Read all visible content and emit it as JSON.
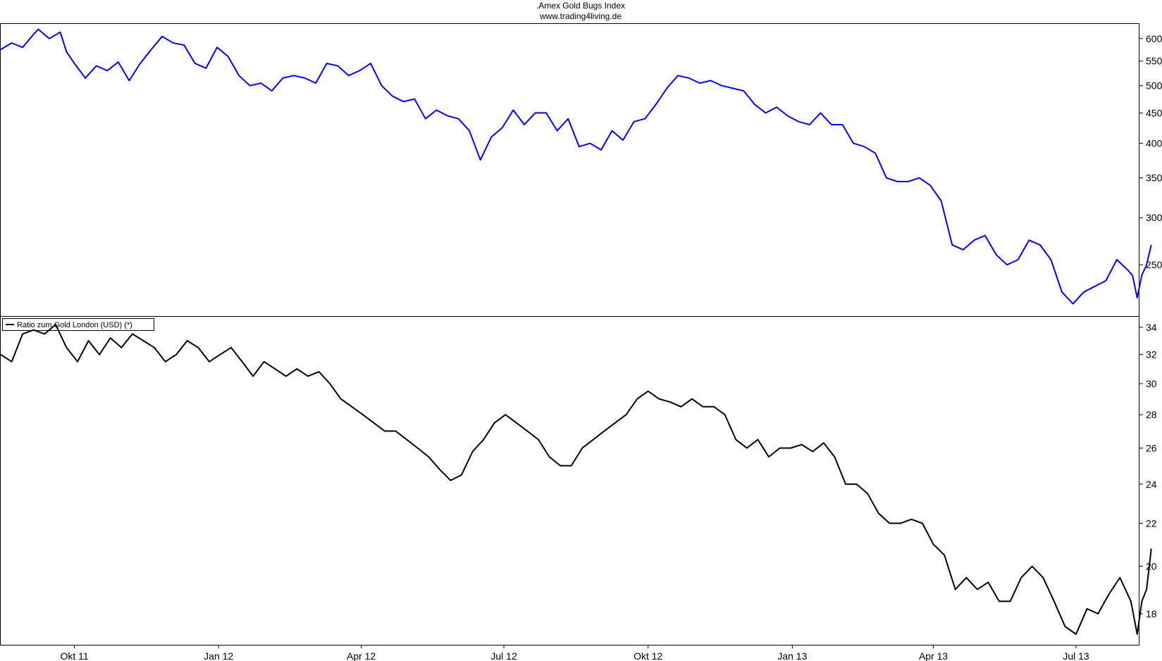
{
  "chart_data": {
    "type": "line",
    "title": ".Amex Gold Bugs Index",
    "subtitle": "www.trading4living.de",
    "x_range": [
      "2011-08-15",
      "2013-08-10"
    ],
    "x_tick_labels": [
      {
        "label": "Okt 11",
        "date": "2011-10-01"
      },
      {
        "label": "Jan 12",
        "date": "2012-01-01"
      },
      {
        "label": "Apr 12",
        "date": "2012-04-01"
      },
      {
        "label": "Jul 12",
        "date": "2012-07-01"
      },
      {
        "label": "Okt 12",
        "date": "2012-10-01"
      },
      {
        "label": "Jan 13",
        "date": "2013-01-01"
      },
      {
        "label": "Apr 13",
        "date": "2013-04-01"
      },
      {
        "label": "Jul 13",
        "date": "2013-07-01"
      }
    ],
    "panels": [
      {
        "y_scale": "log",
        "y_range": [
          205,
          635
        ],
        "y_ticks": [
          250,
          300,
          350,
          400,
          450,
          500,
          550,
          600
        ],
        "series": [
          {
            "color": "#0000ff",
            "points": [
              [
                "2011-08-15",
                575
              ],
              [
                "2011-08-22",
                590
              ],
              [
                "2011-08-29",
                580
              ],
              [
                "2011-09-05",
                610
              ],
              [
                "2011-09-08",
                622
              ],
              [
                "2011-09-15",
                600
              ],
              [
                "2011-09-22",
                615
              ],
              [
                "2011-09-26",
                570
              ],
              [
                "2011-10-01",
                545
              ],
              [
                "2011-10-08",
                515
              ],
              [
                "2011-10-15",
                540
              ],
              [
                "2011-10-22",
                530
              ],
              [
                "2011-10-29",
                548
              ],
              [
                "2011-11-05",
                510
              ],
              [
                "2011-11-12",
                545
              ],
              [
                "2011-11-19",
                575
              ],
              [
                "2011-11-26",
                605
              ],
              [
                "2011-12-03",
                590
              ],
              [
                "2011-12-10",
                585
              ],
              [
                "2011-12-17",
                545
              ],
              [
                "2011-12-24",
                535
              ],
              [
                "2011-12-31",
                580
              ],
              [
                "2012-01-07",
                560
              ],
              [
                "2012-01-14",
                520
              ],
              [
                "2012-01-21",
                500
              ],
              [
                "2012-01-28",
                505
              ],
              [
                "2012-02-04",
                490
              ],
              [
                "2012-02-11",
                515
              ],
              [
                "2012-02-18",
                520
              ],
              [
                "2012-02-25",
                515
              ],
              [
                "2012-03-03",
                505
              ],
              [
                "2012-03-10",
                545
              ],
              [
                "2012-03-17",
                540
              ],
              [
                "2012-03-24",
                520
              ],
              [
                "2012-03-31",
                530
              ],
              [
                "2012-04-07",
                545
              ],
              [
                "2012-04-14",
                500
              ],
              [
                "2012-04-21",
                480
              ],
              [
                "2012-04-28",
                470
              ],
              [
                "2012-05-05",
                475
              ],
              [
                "2012-05-12",
                440
              ],
              [
                "2012-05-19",
                455
              ],
              [
                "2012-05-26",
                445
              ],
              [
                "2012-06-02",
                440
              ],
              [
                "2012-06-09",
                420
              ],
              [
                "2012-06-16",
                375
              ],
              [
                "2012-06-23",
                410
              ],
              [
                "2012-06-30",
                425
              ],
              [
                "2012-07-07",
                455
              ],
              [
                "2012-07-14",
                430
              ],
              [
                "2012-07-21",
                450
              ],
              [
                "2012-07-28",
                450
              ],
              [
                "2012-08-04",
                420
              ],
              [
                "2012-08-11",
                440
              ],
              [
                "2012-08-18",
                395
              ],
              [
                "2012-08-25",
                400
              ],
              [
                "2012-09-01",
                390
              ],
              [
                "2012-09-08",
                420
              ],
              [
                "2012-09-15",
                405
              ],
              [
                "2012-09-22",
                435
              ],
              [
                "2012-09-29",
                440
              ],
              [
                "2012-10-06",
                465
              ],
              [
                "2012-10-13",
                495
              ],
              [
                "2012-10-20",
                520
              ],
              [
                "2012-10-27",
                515
              ],
              [
                "2012-11-03",
                505
              ],
              [
                "2012-11-10",
                510
              ],
              [
                "2012-11-17",
                500
              ],
              [
                "2012-11-24",
                495
              ],
              [
                "2012-12-01",
                490
              ],
              [
                "2012-12-08",
                465
              ],
              [
                "2012-12-15",
                450
              ],
              [
                "2012-12-22",
                460
              ],
              [
                "2012-12-29",
                445
              ],
              [
                "2013-01-05",
                435
              ],
              [
                "2013-01-12",
                430
              ],
              [
                "2013-01-19",
                450
              ],
              [
                "2013-01-26",
                430
              ],
              [
                "2013-02-02",
                430
              ],
              [
                "2013-02-09",
                400
              ],
              [
                "2013-02-16",
                395
              ],
              [
                "2013-02-23",
                385
              ],
              [
                "2013-03-02",
                350
              ],
              [
                "2013-03-09",
                345
              ],
              [
                "2013-03-16",
                345
              ],
              [
                "2013-03-23",
                350
              ],
              [
                "2013-03-30",
                340
              ],
              [
                "2013-04-06",
                320
              ],
              [
                "2013-04-13",
                270
              ],
              [
                "2013-04-20",
                265
              ],
              [
                "2013-04-27",
                275
              ],
              [
                "2013-05-04",
                280
              ],
              [
                "2013-05-11",
                260
              ],
              [
                "2013-05-18",
                250
              ],
              [
                "2013-05-25",
                255
              ],
              [
                "2013-06-01",
                275
              ],
              [
                "2013-06-08",
                270
              ],
              [
                "2013-06-15",
                255
              ],
              [
                "2013-06-22",
                225
              ],
              [
                "2013-06-29",
                215
              ],
              [
                "2013-07-06",
                225
              ],
              [
                "2013-07-13",
                230
              ],
              [
                "2013-07-20",
                235
              ],
              [
                "2013-07-27",
                255
              ],
              [
                "2013-08-03",
                245
              ],
              [
                "2013-08-06",
                240
              ],
              [
                "2013-08-09",
                220
              ],
              [
                "2013-08-12",
                240
              ],
              [
                "2013-08-15",
                250
              ],
              [
                "2013-08-18",
                270
              ]
            ]
          }
        ]
      },
      {
        "y_scale": "log",
        "y_range": [
          16.8,
          34.8
        ],
        "y_ticks": [
          18,
          20,
          22,
          24,
          26,
          28,
          30,
          32,
          34
        ],
        "legend": "Ratio zum Gold London (USD) (*)",
        "series": [
          {
            "name": "Ratio zum Gold London (USD) (*)",
            "color": "#000000",
            "points": [
              [
                "2011-08-15",
                32.0
              ],
              [
                "2011-08-22",
                31.5
              ],
              [
                "2011-08-29",
                33.5
              ],
              [
                "2011-09-05",
                33.8
              ],
              [
                "2011-09-12",
                33.5
              ],
              [
                "2011-09-19",
                34.2
              ],
              [
                "2011-09-26",
                32.5
              ],
              [
                "2011-10-03",
                31.5
              ],
              [
                "2011-10-10",
                33.0
              ],
              [
                "2011-10-17",
                32.0
              ],
              [
                "2011-10-24",
                33.2
              ],
              [
                "2011-10-31",
                32.5
              ],
              [
                "2011-11-07",
                33.5
              ],
              [
                "2011-11-14",
                33.0
              ],
              [
                "2011-11-21",
                32.5
              ],
              [
                "2011-11-28",
                31.5
              ],
              [
                "2011-12-05",
                32.0
              ],
              [
                "2011-12-12",
                33.0
              ],
              [
                "2011-12-19",
                32.5
              ],
              [
                "2011-12-26",
                31.5
              ],
              [
                "2012-01-02",
                32.0
              ],
              [
                "2012-01-09",
                32.5
              ],
              [
                "2012-01-16",
                31.5
              ],
              [
                "2012-01-23",
                30.5
              ],
              [
                "2012-01-30",
                31.5
              ],
              [
                "2012-02-06",
                31.0
              ],
              [
                "2012-02-13",
                30.5
              ],
              [
                "2012-02-20",
                31.0
              ],
              [
                "2012-02-27",
                30.5
              ],
              [
                "2012-03-05",
                30.8
              ],
              [
                "2012-03-12",
                30.0
              ],
              [
                "2012-03-19",
                29.0
              ],
              [
                "2012-03-26",
                28.5
              ],
              [
                "2012-04-02",
                28.0
              ],
              [
                "2012-04-09",
                27.5
              ],
              [
                "2012-04-16",
                27.0
              ],
              [
                "2012-04-23",
                27.0
              ],
              [
                "2012-04-30",
                26.5
              ],
              [
                "2012-05-07",
                26.0
              ],
              [
                "2012-05-14",
                25.5
              ],
              [
                "2012-05-21",
                24.8
              ],
              [
                "2012-05-28",
                24.2
              ],
              [
                "2012-06-04",
                24.5
              ],
              [
                "2012-06-11",
                25.8
              ],
              [
                "2012-06-18",
                26.5
              ],
              [
                "2012-06-25",
                27.5
              ],
              [
                "2012-07-02",
                28.0
              ],
              [
                "2012-07-09",
                27.5
              ],
              [
                "2012-07-16",
                27.0
              ],
              [
                "2012-07-23",
                26.5
              ],
              [
                "2012-07-30",
                25.5
              ],
              [
                "2012-08-06",
                25.0
              ],
              [
                "2012-08-13",
                25.0
              ],
              [
                "2012-08-20",
                26.0
              ],
              [
                "2012-08-27",
                26.5
              ],
              [
                "2012-09-03",
                27.0
              ],
              [
                "2012-09-10",
                27.5
              ],
              [
                "2012-09-17",
                28.0
              ],
              [
                "2012-09-24",
                29.0
              ],
              [
                "2012-10-01",
                29.5
              ],
              [
                "2012-10-08",
                29.0
              ],
              [
                "2012-10-15",
                28.8
              ],
              [
                "2012-10-22",
                28.5
              ],
              [
                "2012-10-29",
                29.0
              ],
              [
                "2012-11-05",
                28.5
              ],
              [
                "2012-11-12",
                28.5
              ],
              [
                "2012-11-19",
                28.0
              ],
              [
                "2012-11-26",
                26.5
              ],
              [
                "2012-12-03",
                26.0
              ],
              [
                "2012-12-10",
                26.5
              ],
              [
                "2012-12-17",
                25.5
              ],
              [
                "2012-12-24",
                26.0
              ],
              [
                "2012-12-31",
                26.0
              ],
              [
                "2013-01-07",
                26.2
              ],
              [
                "2013-01-14",
                25.8
              ],
              [
                "2013-01-21",
                26.3
              ],
              [
                "2013-01-28",
                25.5
              ],
              [
                "2013-02-04",
                24.0
              ],
              [
                "2013-02-11",
                24.0
              ],
              [
                "2013-02-18",
                23.5
              ],
              [
                "2013-02-25",
                22.5
              ],
              [
                "2013-03-04",
                22.0
              ],
              [
                "2013-03-11",
                22.0
              ],
              [
                "2013-03-18",
                22.2
              ],
              [
                "2013-03-25",
                22.0
              ],
              [
                "2013-04-01",
                21.0
              ],
              [
                "2013-04-08",
                20.5
              ],
              [
                "2013-04-15",
                19.0
              ],
              [
                "2013-04-22",
                19.5
              ],
              [
                "2013-04-29",
                19.0
              ],
              [
                "2013-05-06",
                19.3
              ],
              [
                "2013-05-13",
                18.5
              ],
              [
                "2013-05-20",
                18.5
              ],
              [
                "2013-05-27",
                19.5
              ],
              [
                "2013-06-03",
                20.0
              ],
              [
                "2013-06-10",
                19.5
              ],
              [
                "2013-06-17",
                18.5
              ],
              [
                "2013-06-24",
                17.5
              ],
              [
                "2013-07-01",
                17.2
              ],
              [
                "2013-07-08",
                18.2
              ],
              [
                "2013-07-15",
                18.0
              ],
              [
                "2013-07-22",
                18.8
              ],
              [
                "2013-07-29",
                19.5
              ],
              [
                "2013-08-05",
                18.5
              ],
              [
                "2013-08-09",
                17.2
              ],
              [
                "2013-08-12",
                18.5
              ],
              [
                "2013-08-15",
                19.0
              ],
              [
                "2013-08-18",
                20.8
              ]
            ]
          }
        ]
      }
    ]
  }
}
